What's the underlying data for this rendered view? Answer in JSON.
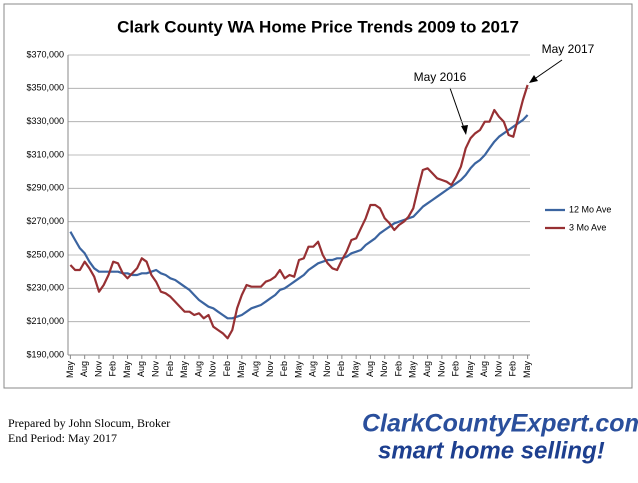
{
  "chart_data": {
    "type": "line",
    "title": "Clark County WA Home Price Trends 2009 to 2017",
    "categories": [
      "May",
      null,
      null,
      "Aug",
      null,
      null,
      "Nov",
      null,
      null,
      "Feb",
      null,
      null,
      "May",
      null,
      null,
      "Aug",
      null,
      null,
      "Nov",
      null,
      null,
      "Feb",
      null,
      null,
      "May",
      null,
      null,
      "Aug",
      null,
      null,
      "Nov",
      null,
      null,
      "Feb",
      null,
      null,
      "May",
      null,
      null,
      "Aug",
      null,
      null,
      "Nov",
      null,
      null,
      "Feb",
      null,
      null,
      "May",
      null,
      null,
      "Aug",
      null,
      null,
      "Nov",
      null,
      null,
      "Feb",
      null,
      null,
      "May",
      null,
      null,
      "Aug",
      null,
      null,
      "Nov",
      null,
      null,
      "Feb",
      null,
      null,
      "May",
      null,
      null,
      "Aug",
      null,
      null,
      "Nov",
      null,
      null,
      "Feb",
      null,
      null,
      "May",
      null,
      null,
      "Aug",
      null,
      null,
      "Nov",
      null,
      null,
      "Feb",
      null,
      null,
      "May"
    ],
    "series": [
      {
        "name": "12 Mo Ave",
        "color": "#3b64a0",
        "values": [
          264000,
          259000,
          254000,
          251000,
          246000,
          242000,
          240000,
          240000,
          240000,
          240000,
          240000,
          239000,
          239000,
          238000,
          238000,
          239000,
          239000,
          240000,
          241000,
          239000,
          238000,
          236000,
          235000,
          233000,
          231000,
          229000,
          226000,
          223000,
          221000,
          219000,
          218000,
          216000,
          214000,
          212000,
          212000,
          213000,
          214000,
          216000,
          218000,
          219000,
          220000,
          222000,
          224000,
          226000,
          229000,
          230000,
          232000,
          234000,
          236000,
          238000,
          241000,
          243000,
          245000,
          246000,
          247000,
          247000,
          248000,
          248000,
          249000,
          251000,
          252000,
          253000,
          256000,
          258000,
          260000,
          263000,
          265000,
          267000,
          269000,
          270000,
          271000,
          272000,
          273000,
          276000,
          279000,
          281000,
          283000,
          285000,
          287000,
          289000,
          291000,
          293000,
          295000,
          298000,
          302000,
          305000,
          307000,
          310000,
          314000,
          318000,
          321000,
          323000,
          325000,
          327000,
          329000,
          331000,
          334000
        ]
      },
      {
        "name": "3 Mo Ave",
        "color": "#973033",
        "values": [
          244000,
          241000,
          241000,
          246000,
          242000,
          237000,
          228000,
          232000,
          238000,
          246000,
          245000,
          239000,
          236000,
          239000,
          242000,
          248000,
          246000,
          238000,
          234000,
          228000,
          227000,
          225000,
          222000,
          219000,
          216000,
          216000,
          214000,
          215000,
          212000,
          214000,
          207000,
          205000,
          203000,
          200000,
          205000,
          218000,
          226000,
          232000,
          231000,
          231000,
          231000,
          234000,
          235000,
          237000,
          241000,
          236000,
          238000,
          237000,
          247000,
          248000,
          255000,
          255000,
          258000,
          250000,
          245000,
          242000,
          241000,
          247000,
          252000,
          259000,
          260000,
          266000,
          272000,
          280000,
          280000,
          278000,
          272000,
          269000,
          265000,
          268000,
          270000,
          273000,
          278000,
          290000,
          301000,
          302000,
          299000,
          296000,
          295000,
          294000,
          292000,
          297000,
          303000,
          314000,
          320000,
          323000,
          325000,
          330000,
          330000,
          337000,
          333000,
          330000,
          322000,
          321000,
          332000,
          343000,
          352000
        ]
      }
    ],
    "ylim": [
      190000,
      370000
    ],
    "yticks": [
      {
        "value": 190000,
        "label": "$190,000"
      },
      {
        "value": 210000,
        "label": "$210,000"
      },
      {
        "value": 230000,
        "label": "$230,000"
      },
      {
        "value": 250000,
        "label": "$250,000"
      },
      {
        "value": 270000,
        "label": "$270,000"
      },
      {
        "value": 290000,
        "label": "$290,000"
      },
      {
        "value": 310000,
        "label": "$310,000"
      },
      {
        "value": 330000,
        "label": "$330,000"
      },
      {
        "value": 350000,
        "label": "$350,000"
      },
      {
        "value": 370000,
        "label": "$370,000"
      }
    ],
    "grid": true,
    "legend": "right",
    "annotations": [
      "May 2016",
      "May 2017"
    ]
  },
  "footer": {
    "prepared": "Prepared by John Slocum, Broker",
    "period": "End Period: May 2017",
    "logo": "ClarkCountyExpert.com",
    "slogan": "smart home selling!"
  }
}
